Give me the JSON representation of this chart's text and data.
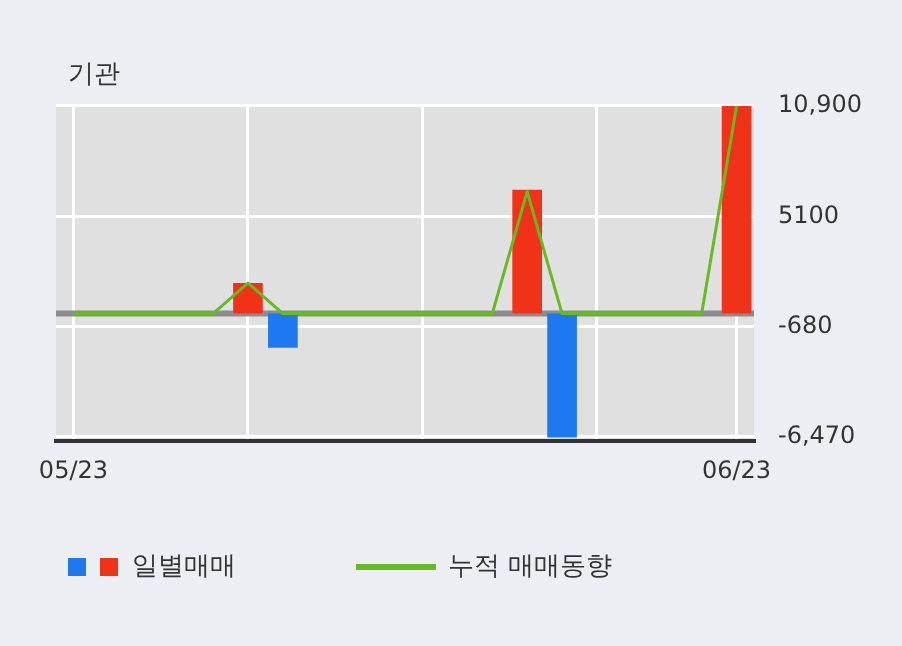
{
  "chart_data": {
    "type": "bar",
    "title": "기관",
    "categories": [
      "05/23",
      null,
      null,
      null,
      null,
      null,
      null,
      null,
      null,
      null,
      null,
      null,
      null,
      null,
      null,
      null,
      null,
      null,
      null,
      "06/23"
    ],
    "series": [
      {
        "name": "일별매매",
        "colors": [
          "#f03218",
          "#f03218",
          "#f03218",
          "#f03218",
          "#f03218",
          "#f03218",
          "#1e78f0",
          "#f03218",
          "#f03218",
          "#f03218",
          "#f03218",
          "#f03218",
          "#f03218",
          "#f03218",
          "#1e78f0",
          "#f03218",
          "#f03218",
          "#f03218",
          "#f03218",
          "#f03218"
        ],
        "values": [
          0,
          0,
          0,
          0,
          0,
          1600,
          -1800,
          0,
          0,
          0,
          0,
          0,
          0,
          6500,
          -6500,
          0,
          0,
          0,
          0,
          10900
        ]
      },
      {
        "name": "누적 매매동향",
        "type": "line",
        "color": "#66bb22",
        "values": [
          0,
          0,
          0,
          0,
          0,
          1600,
          0,
          0,
          0,
          0,
          0,
          0,
          0,
          6400,
          0,
          0,
          0,
          0,
          0,
          10900
        ]
      }
    ],
    "ylim": [
      -6700,
      11000
    ],
    "yticks": [
      {
        "value": 10900,
        "label": "10,900"
      },
      5100,
      -680,
      {
        "value": -6470,
        "label": "-6,470"
      }
    ],
    "ref_lines": [
      {
        "axis": "y",
        "value": 0,
        "color": "#8c8c8c"
      }
    ],
    "grid": true,
    "legend": "bottom",
    "marker": "none"
  }
}
